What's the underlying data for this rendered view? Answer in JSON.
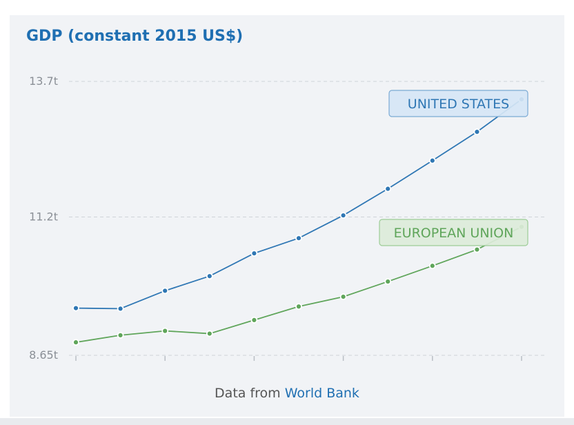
{
  "chart_data": {
    "type": "line",
    "title": "GDP (constant 2015 US$)",
    "xlabel": "",
    "ylabel": "",
    "ylim": [
      8.65,
      13.7
    ],
    "y_ticks": [
      {
        "value": 8.65,
        "label": "8.65t"
      },
      {
        "value": 11.2,
        "label": "11.2t"
      },
      {
        "value": 13.7,
        "label": "13.7t"
      }
    ],
    "x": [
      0,
      1,
      2,
      3,
      4,
      5,
      6,
      7,
      8,
      9,
      10
    ],
    "x_ticks": [
      0,
      2,
      4,
      6,
      8,
      10
    ],
    "series": [
      {
        "name": "UNITED STATES",
        "color": "#2f77b4",
        "label_bg": "#d6e6f5",
        "label_border": "#7aaad4",
        "values": [
          9.52,
          9.51,
          9.84,
          10.11,
          10.53,
          10.81,
          11.23,
          11.72,
          12.24,
          12.77,
          13.37
        ]
      },
      {
        "name": "EUROPEAN UNION",
        "color": "#5fa55a",
        "label_bg": "#dcebd9",
        "label_border": "#9ccc96",
        "values": [
          8.89,
          9.02,
          9.1,
          9.05,
          9.3,
          9.55,
          9.73,
          10.01,
          10.3,
          10.6,
          11.02
        ]
      }
    ]
  },
  "footer": {
    "prefix": "Data from",
    "link": "World Bank"
  }
}
